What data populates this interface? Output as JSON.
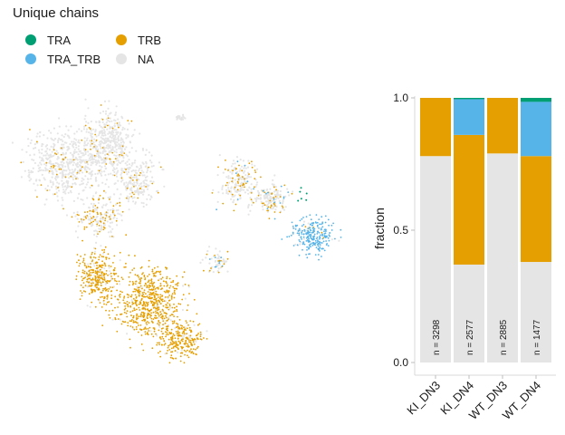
{
  "legend": {
    "title": "Unique chains",
    "items": [
      {
        "label": "TRA",
        "color": "#009E73"
      },
      {
        "label": "TRB",
        "color": "#E69F00"
      },
      {
        "label": "TRA_TRB",
        "color": "#56B4E9"
      },
      {
        "label": "NA",
        "color": "#E5E5E5"
      }
    ]
  },
  "chart_data": [
    {
      "type": "scatter",
      "title": "",
      "xlabel": "",
      "ylabel": "",
      "grid": false,
      "series": [
        {
          "name": "TRA",
          "color": "#009E73"
        },
        {
          "name": "TRB",
          "color": "#E69F00"
        },
        {
          "name": "TRA_TRB",
          "color": "#56B4E9"
        },
        {
          "name": "NA",
          "color": "#E5E5E5"
        }
      ]
    },
    {
      "type": "bar",
      "stacked": true,
      "ylabel": "fraction",
      "ylim": [
        0,
        1
      ],
      "yticks": [
        "0.0",
        "0.5",
        "1.0"
      ],
      "categories": [
        "KI_DN3",
        "KI_DN4",
        "WT_DN3",
        "WT_DN4"
      ],
      "annotations": [
        "n = 3298",
        "n = 2577",
        "n = 2885",
        "n = 1477"
      ],
      "series": [
        {
          "name": "NA",
          "color": "#E5E5E5",
          "values": [
            0.78,
            0.37,
            0.79,
            0.38
          ]
        },
        {
          "name": "TRB",
          "color": "#E69F00",
          "values": [
            0.22,
            0.49,
            0.21,
            0.4
          ]
        },
        {
          "name": "TRA_TRB",
          "color": "#56B4E9",
          "values": [
            0.0,
            0.135,
            0.0,
            0.205
          ]
        },
        {
          "name": "TRA",
          "color": "#009E73",
          "values": [
            0.0,
            0.005,
            0.0,
            0.015
          ]
        }
      ]
    }
  ]
}
